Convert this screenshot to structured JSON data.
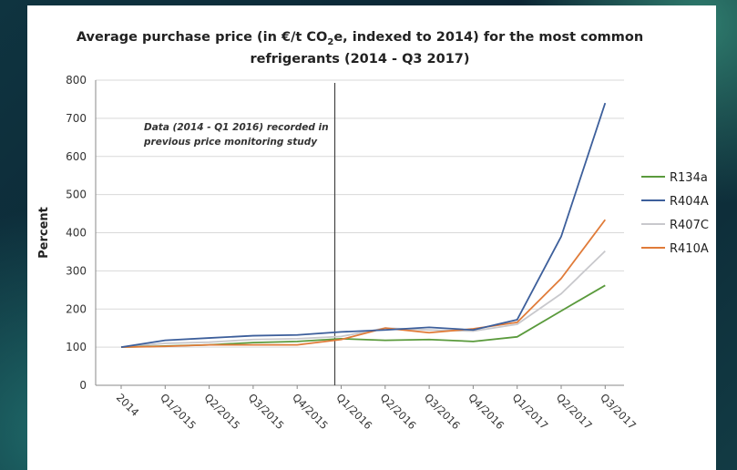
{
  "chart_data": {
    "type": "line",
    "title_line1_pre": "Average purchase price (in €/t CO",
    "title_line1_sub": "2",
    "title_line1_post": "e, indexed to 2014) for the most common",
    "title_line2": "refrigerants (2014 - Q3 2017)",
    "ylabel": "Percent",
    "xlabel": "",
    "ylim": [
      0,
      800
    ],
    "yticks": [
      0,
      100,
      200,
      300,
      400,
      500,
      600,
      700,
      800
    ],
    "categories": [
      "2014",
      "Q1/2015",
      "Q2/2015",
      "Q3/2015",
      "Q4/2015",
      "Q1/2016",
      "Q2/2016",
      "Q3/2016",
      "Q4/2016",
      "Q1/2017",
      "Q2/2017",
      "Q3/2017"
    ],
    "grid": true,
    "legend_position": "right",
    "annotation_line1": "Data (2014 - Q1 2016) recorded in",
    "annotation_line2": "previous price monitoring study",
    "divider_after_category": "Q1/2016",
    "series": [
      {
        "name": "R134a",
        "color": "#5a9a3c",
        "values": [
          100,
          103,
          106,
          112,
          115,
          122,
          118,
          120,
          115,
          127,
          195,
          262
        ]
      },
      {
        "name": "R404A",
        "color": "#3d5f9b",
        "values": [
          100,
          118,
          124,
          130,
          132,
          140,
          145,
          152,
          145,
          172,
          390,
          740
        ]
      },
      {
        "name": "R407C",
        "color": "#c8c8cc",
        "values": [
          100,
          110,
          113,
          120,
          122,
          128,
          150,
          145,
          142,
          160,
          240,
          352
        ]
      },
      {
        "name": "R410A",
        "color": "#e07b39",
        "values": [
          100,
          102,
          106,
          106,
          106,
          120,
          150,
          138,
          148,
          165,
          280,
          434
        ]
      }
    ]
  }
}
